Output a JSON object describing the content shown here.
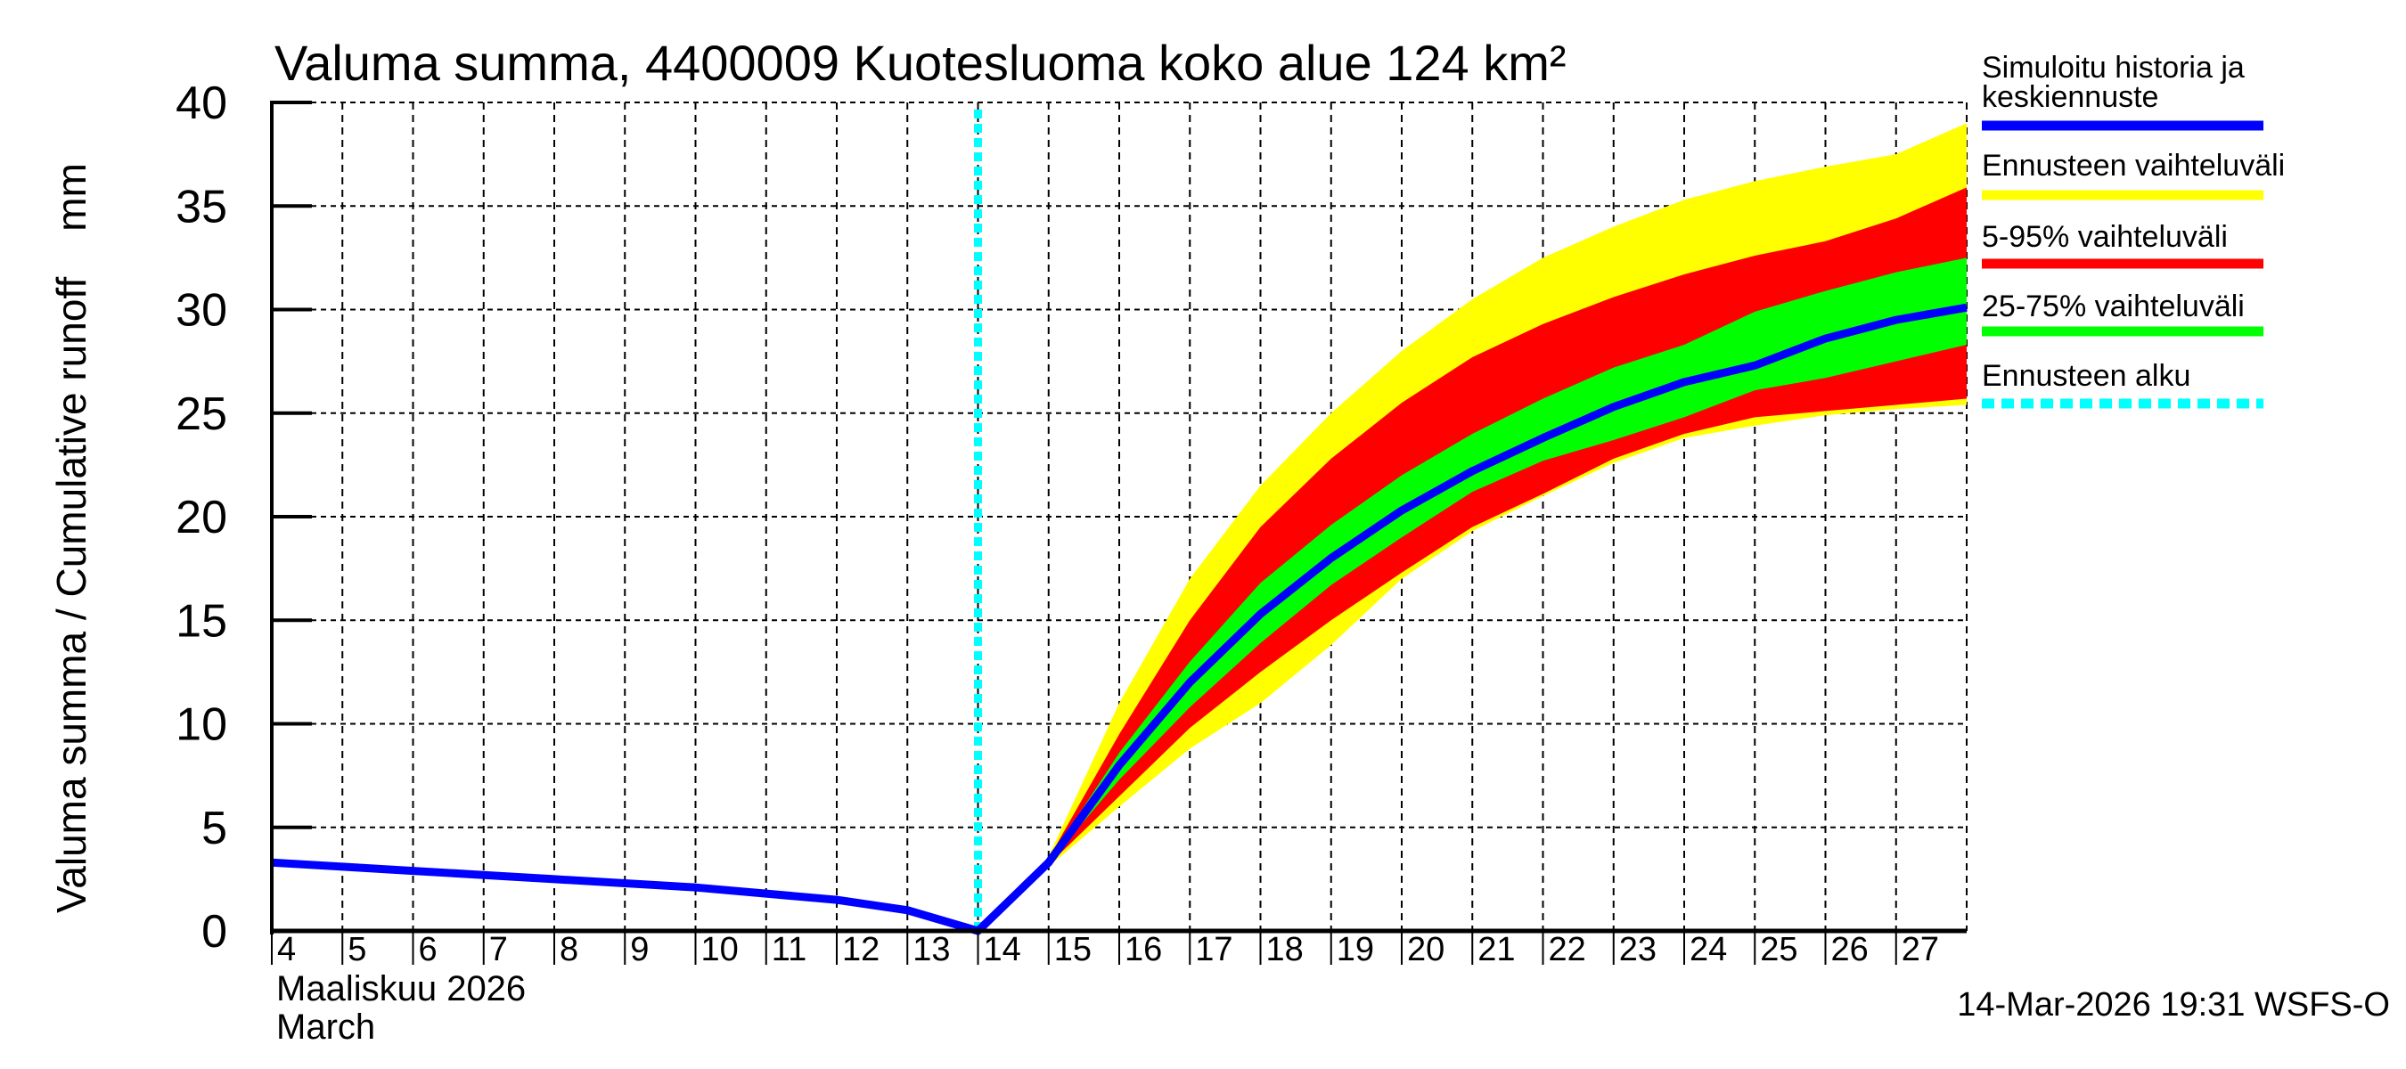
{
  "chart_data": {
    "type": "area",
    "title": "Valuma summa, 4400009 Kuotesluoma koko alue 124 km²",
    "ylabel": "Valuma summa / Cumulative runoff    mm",
    "xlabel_line1": "Maaliskuu 2026",
    "xlabel_line2": "March",
    "footer": "14-Mar-2026 19:31 WSFS-O",
    "ylim": [
      0,
      40
    ],
    "yticks": [
      0,
      5,
      10,
      15,
      20,
      25,
      30,
      35,
      40
    ],
    "xlim_day": [
      4,
      28
    ],
    "xtick_days": [
      4,
      5,
      6,
      7,
      8,
      9,
      10,
      11,
      12,
      13,
      14,
      15,
      16,
      17,
      18,
      19,
      20,
      21,
      22,
      23,
      24,
      25,
      26,
      27
    ],
    "grid": true,
    "legend_position": "right",
    "forecast_start_day": 14,
    "colors": {
      "history": "#0000ff",
      "range_full": "#ffff00",
      "range_5_95": "#ff0000",
      "range_25_75": "#00ff00",
      "forecast_start": "#00ffff"
    },
    "legend": [
      {
        "key": "history",
        "label_lines": [
          "Simuloitu historia ja",
          "keskiennuste"
        ]
      },
      {
        "key": "range_full",
        "label_lines": [
          "Ennusteen vaihteluväli"
        ]
      },
      {
        "key": "range_5_95",
        "label_lines": [
          "5-95% vaihteluväli"
        ]
      },
      {
        "key": "range_25_75",
        "label_lines": [
          "25-75% vaihteluväli"
        ]
      },
      {
        "key": "forecast_start",
        "label_lines": [
          "Ennusteen alku"
        ]
      }
    ],
    "history": {
      "days": [
        4,
        5,
        6,
        7,
        8,
        9,
        10,
        11,
        12,
        13,
        14
      ],
      "values": [
        3.3,
        3.1,
        2.9,
        2.7,
        2.5,
        2.3,
        2.1,
        1.8,
        1.5,
        1.0,
        0
      ]
    },
    "forecast": {
      "days": [
        14,
        15,
        16,
        17,
        18,
        19,
        20,
        21,
        22,
        23,
        24,
        25,
        26,
        27,
        28
      ],
      "median": [
        0,
        3.3,
        8.0,
        12.0,
        15.3,
        18.0,
        20.3,
        22.2,
        23.8,
        25.3,
        26.5,
        27.3,
        28.6,
        29.5,
        30.1
      ],
      "full_max": [
        0,
        3.6,
        11.0,
        17.0,
        21.5,
        25.0,
        28.0,
        30.5,
        32.5,
        34.0,
        35.3,
        36.2,
        36.9,
        37.5,
        39.0
      ],
      "full_min": [
        0,
        3.1,
        6.0,
        8.8,
        11.0,
        13.8,
        17.0,
        19.3,
        21.0,
        22.6,
        23.8,
        24.4,
        24.9,
        25.2,
        25.4
      ],
      "p95": [
        0,
        3.5,
        9.5,
        15.0,
        19.5,
        22.8,
        25.5,
        27.7,
        29.3,
        30.6,
        31.7,
        32.6,
        33.3,
        34.4,
        35.9
      ],
      "p5": [
        0,
        3.2,
        6.5,
        9.8,
        12.5,
        15.0,
        17.3,
        19.5,
        21.1,
        22.8,
        24.0,
        24.8,
        25.1,
        25.4,
        25.7
      ],
      "p75": [
        0,
        3.4,
        8.6,
        13.0,
        16.8,
        19.6,
        22.0,
        24.0,
        25.7,
        27.2,
        28.3,
        29.9,
        30.9,
        31.8,
        32.5
      ],
      "p25": [
        0,
        3.3,
        7.3,
        10.8,
        13.9,
        16.7,
        19.0,
        21.2,
        22.7,
        23.7,
        24.8,
        26.1,
        26.7,
        27.5,
        28.3
      ]
    }
  }
}
